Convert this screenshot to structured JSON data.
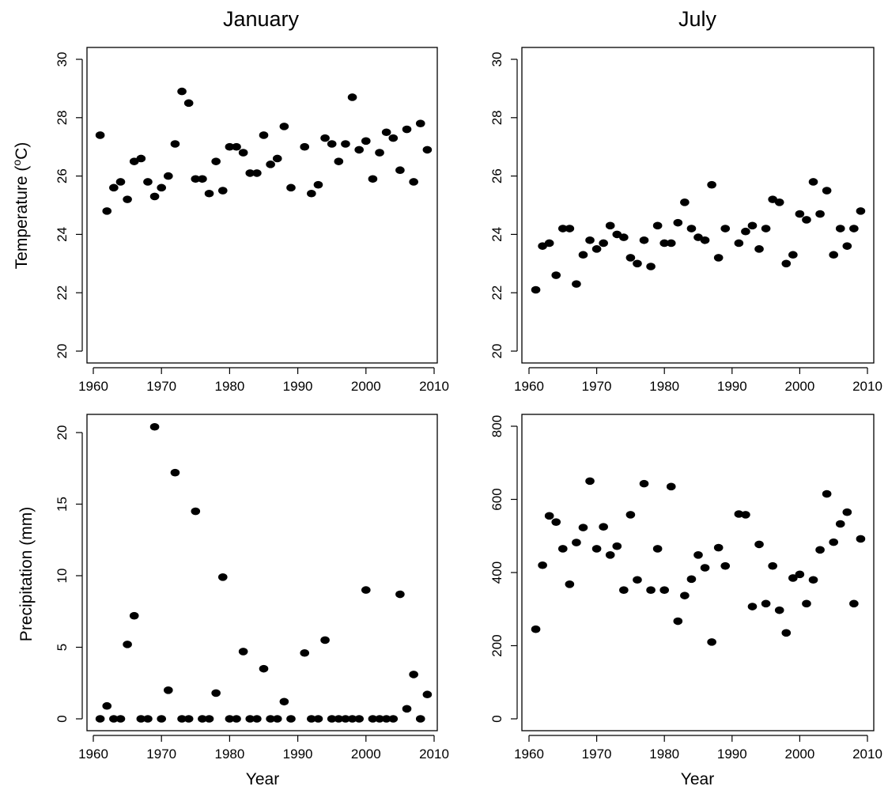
{
  "figure": {
    "column_titles": [
      "January",
      "July"
    ],
    "row_ylabels": [
      "Temperature (°C)",
      "Precipitation (mm)"
    ],
    "xlabel": "Year"
  },
  "colors": {
    "points": "#000000",
    "frame": "#000000",
    "background": "#ffffff"
  },
  "chart_data": [
    {
      "type": "scatter",
      "panel": "top-left",
      "title": "January",
      "ylabel": "Temperature (°C)",
      "xlabel": "",
      "xlim": [
        1960,
        2010
      ],
      "ylim": [
        20,
        30
      ],
      "xticks": [
        1960,
        1970,
        1980,
        1990,
        2000,
        2010
      ],
      "yticks": [
        20,
        22,
        24,
        26,
        28,
        30
      ],
      "grid": false,
      "x": [
        1961,
        1962,
        1963,
        1964,
        1965,
        1966,
        1967,
        1968,
        1969,
        1970,
        1971,
        1972,
        1973,
        1974,
        1975,
        1976,
        1977,
        1978,
        1979,
        1980,
        1981,
        1982,
        1983,
        1984,
        1985,
        1986,
        1987,
        1988,
        1989,
        1991,
        1992,
        1993,
        1994,
        1995,
        1996,
        1997,
        1998,
        1999,
        2000,
        2001,
        2002,
        2003,
        2004,
        2005,
        2006,
        2007,
        2008,
        2009
      ],
      "y": [
        27.4,
        24.8,
        25.6,
        25.8,
        25.2,
        26.5,
        26.6,
        25.8,
        25.3,
        25.6,
        26.0,
        27.1,
        28.9,
        28.5,
        25.9,
        25.9,
        25.4,
        26.5,
        25.5,
        27.0,
        27.0,
        26.8,
        26.1,
        26.1,
        27.4,
        26.4,
        26.6,
        27.7,
        25.6,
        27.0,
        25.4,
        25.7,
        27.3,
        27.1,
        26.5,
        27.1,
        28.7,
        26.9,
        27.2,
        25.9,
        26.8,
        27.5,
        27.3,
        26.2,
        27.6,
        25.8,
        27.8,
        26.9
      ]
    },
    {
      "type": "scatter",
      "panel": "top-right",
      "title": "July",
      "ylabel": "",
      "xlabel": "",
      "xlim": [
        1960,
        2010
      ],
      "ylim": [
        20,
        30
      ],
      "xticks": [
        1960,
        1970,
        1980,
        1990,
        2000,
        2010
      ],
      "yticks": [
        20,
        22,
        24,
        26,
        28,
        30
      ],
      "grid": false,
      "x": [
        1961,
        1962,
        1963,
        1964,
        1965,
        1966,
        1967,
        1968,
        1969,
        1970,
        1971,
        1972,
        1973,
        1974,
        1975,
        1976,
        1977,
        1978,
        1979,
        1980,
        1981,
        1982,
        1983,
        1984,
        1985,
        1986,
        1987,
        1988,
        1989,
        1991,
        1992,
        1993,
        1994,
        1995,
        1996,
        1997,
        1998,
        1999,
        2000,
        2001,
        2002,
        2003,
        2004,
        2005,
        2006,
        2007,
        2008,
        2009
      ],
      "y": [
        22.1,
        23.6,
        23.7,
        22.6,
        24.2,
        24.2,
        22.3,
        23.3,
        23.8,
        23.5,
        23.7,
        24.3,
        24.0,
        23.9,
        23.2,
        23.0,
        23.8,
        22.9,
        24.3,
        23.7,
        23.7,
        24.4,
        25.1,
        24.2,
        23.9,
        23.8,
        25.7,
        23.2,
        24.2,
        23.7,
        24.1,
        24.3,
        23.5,
        24.2,
        25.2,
        25.1,
        23.0,
        23.3,
        24.7,
        24.5,
        25.8,
        24.7,
        25.5,
        23.3,
        24.2,
        23.6,
        24.2,
        24.8
      ]
    },
    {
      "type": "scatter",
      "panel": "bottom-left",
      "title": "",
      "ylabel": "Precipitation (mm)",
      "xlabel": "Year",
      "xlim": [
        1960,
        2010
      ],
      "ylim": [
        0,
        20
      ],
      "xticks": [
        1960,
        1970,
        1980,
        1990,
        2000,
        2010
      ],
      "yticks": [
        0,
        5,
        10,
        15,
        20
      ],
      "grid": false,
      "x": [
        1961,
        1962,
        1963,
        1964,
        1965,
        1966,
        1967,
        1968,
        1969,
        1970,
        1971,
        1972,
        1973,
        1974,
        1975,
        1976,
        1977,
        1978,
        1979,
        1980,
        1981,
        1982,
        1983,
        1984,
        1985,
        1986,
        1987,
        1988,
        1989,
        1991,
        1992,
        1993,
        1994,
        1995,
        1996,
        1997,
        1998,
        1999,
        2000,
        2001,
        2002,
        2003,
        2004,
        2005,
        2006,
        2007,
        2008,
        2009
      ],
      "y": [
        0,
        0.9,
        0,
        0,
        5.2,
        7.2,
        0,
        0,
        20.4,
        0,
        2.0,
        17.2,
        0,
        0,
        14.5,
        0,
        0,
        1.8,
        9.9,
        0,
        0,
        4.7,
        0,
        0,
        3.5,
        0,
        0,
        1.2,
        0,
        4.6,
        0,
        0,
        5.5,
        0,
        0,
        0,
        0,
        0,
        9.0,
        0,
        0,
        0,
        0,
        8.7,
        0.7,
        3.1,
        0,
        1.7
      ]
    },
    {
      "type": "scatter",
      "panel": "bottom-right",
      "title": "",
      "ylabel": "",
      "xlabel": "Year",
      "xlim": [
        1960,
        2010
      ],
      "ylim": [
        0,
        800
      ],
      "xticks": [
        1960,
        1970,
        1980,
        1990,
        2000,
        2010
      ],
      "yticks": [
        0,
        200,
        400,
        600,
        800
      ],
      "grid": false,
      "x": [
        1961,
        1962,
        1963,
        1964,
        1965,
        1966,
        1967,
        1968,
        1969,
        1970,
        1971,
        1972,
        1973,
        1974,
        1975,
        1976,
        1977,
        1978,
        1979,
        1980,
        1981,
        1982,
        1983,
        1984,
        1985,
        1986,
        1987,
        1988,
        1989,
        1991,
        1992,
        1993,
        1994,
        1995,
        1996,
        1997,
        1998,
        1999,
        2000,
        2001,
        2002,
        2003,
        2004,
        2005,
        2006,
        2007,
        2008,
        2009
      ],
      "y": [
        245,
        420,
        555,
        538,
        465,
        368,
        482,
        523,
        650,
        465,
        525,
        448,
        472,
        352,
        558,
        380,
        643,
        352,
        465,
        352,
        635,
        267,
        337,
        382,
        448,
        413,
        210,
        468,
        418,
        560,
        558,
        307,
        477,
        315,
        418,
        297,
        235,
        385,
        395,
        315,
        380,
        462,
        615,
        483,
        533,
        565,
        315,
        492
      ]
    }
  ]
}
